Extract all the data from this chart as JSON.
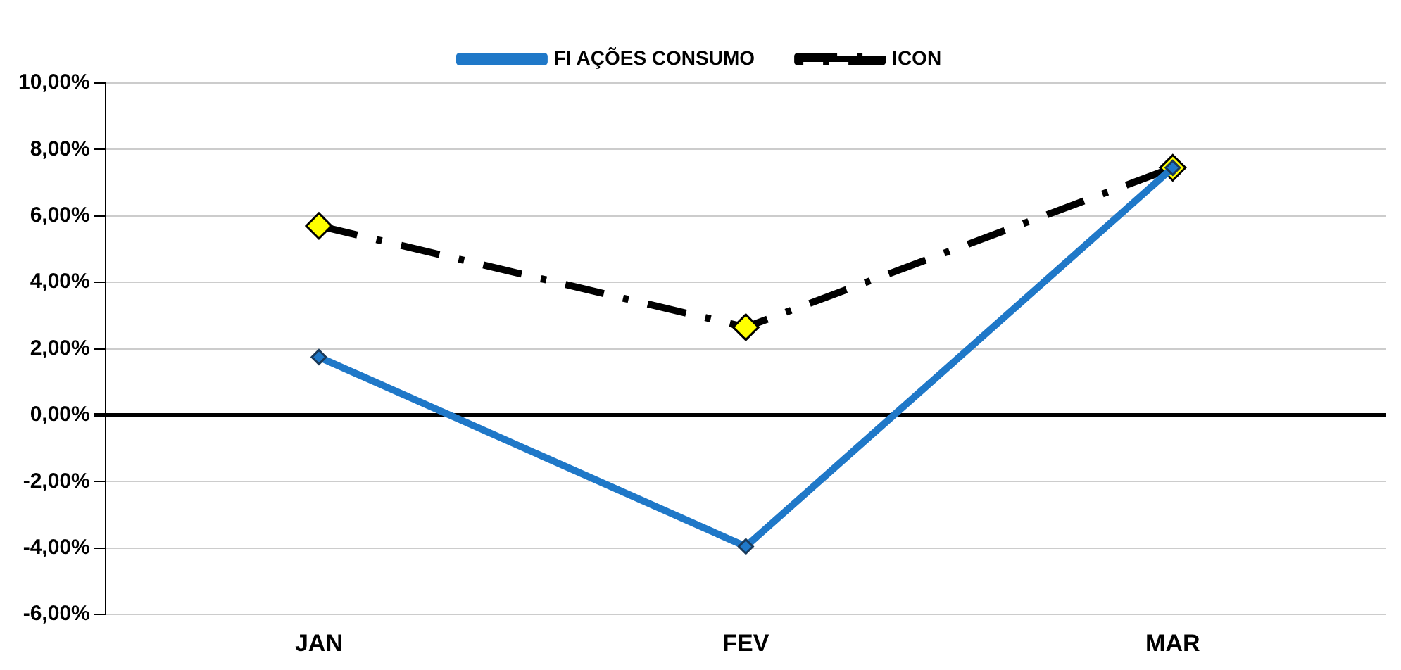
{
  "chart_data": {
    "type": "line",
    "categories": [
      "JAN",
      "FEV",
      "MAR"
    ],
    "series": [
      {
        "name": "FI AÇÕES CONSUMO",
        "color": "#1f78c8",
        "values": [
          1.75,
          -3.95,
          7.45
        ],
        "line_style": "solid"
      },
      {
        "name": "ICON",
        "color": "#000000",
        "values": [
          5.7,
          2.65,
          7.45
        ],
        "line_style": "dashed"
      }
    ],
    "ylim": [
      -6,
      10
    ],
    "yticks": [
      {
        "value": -6,
        "label": "-6,00%"
      },
      {
        "value": -4,
        "label": "-4,00%"
      },
      {
        "value": -2,
        "label": "-2,00%"
      },
      {
        "value": 0,
        "label": "0,00%"
      },
      {
        "value": 2,
        "label": "2,00%"
      },
      {
        "value": 4,
        "label": "4,00%"
      },
      {
        "value": 6,
        "label": "6,00%"
      },
      {
        "value": 8,
        "label": "8,00%"
      },
      {
        "value": 10,
        "label": "10,00%"
      }
    ],
    "grid": "y",
    "legend": "top",
    "marker": "diamond"
  }
}
